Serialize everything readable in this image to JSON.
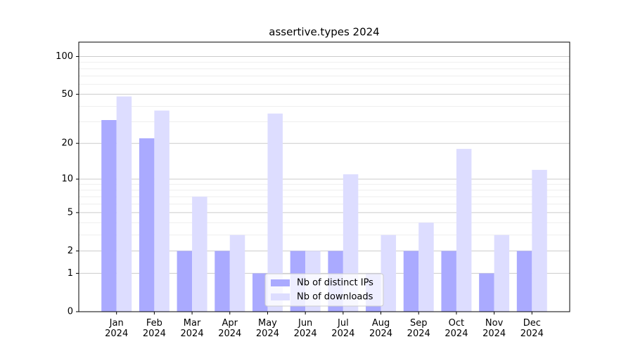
{
  "chart_data": {
    "type": "bar",
    "title": "assertive.types 2024",
    "categories": [
      "Jan\n2024",
      "Feb\n2024",
      "Mar\n2024",
      "Apr\n2024",
      "May\n2024",
      "Jun\n2024",
      "Jul\n2024",
      "Aug\n2024",
      "Sep\n2024",
      "Oct\n2024",
      "Nov\n2024",
      "Dec\n2024"
    ],
    "series": [
      {
        "name": "Nb of distinct IPs",
        "color": "#aaaaff",
        "values": [
          31,
          22,
          2,
          2,
          1,
          2,
          2,
          1,
          2,
          2,
          1,
          2
        ]
      },
      {
        "name": "Nb of downloads",
        "color": "#ddddff",
        "values": [
          48,
          37,
          7,
          3,
          35,
          2,
          11,
          3,
          4,
          18,
          3,
          12
        ]
      }
    ],
    "yscale": "log1p",
    "ylim": [
      0,
      130
    ],
    "yticks": [
      0,
      1,
      2,
      5,
      10,
      20,
      50,
      100
    ],
    "yminorticks": [
      3,
      4,
      6,
      7,
      8,
      9,
      30,
      40,
      60,
      70,
      80,
      90
    ],
    "grid": true,
    "legend": "lower center"
  }
}
